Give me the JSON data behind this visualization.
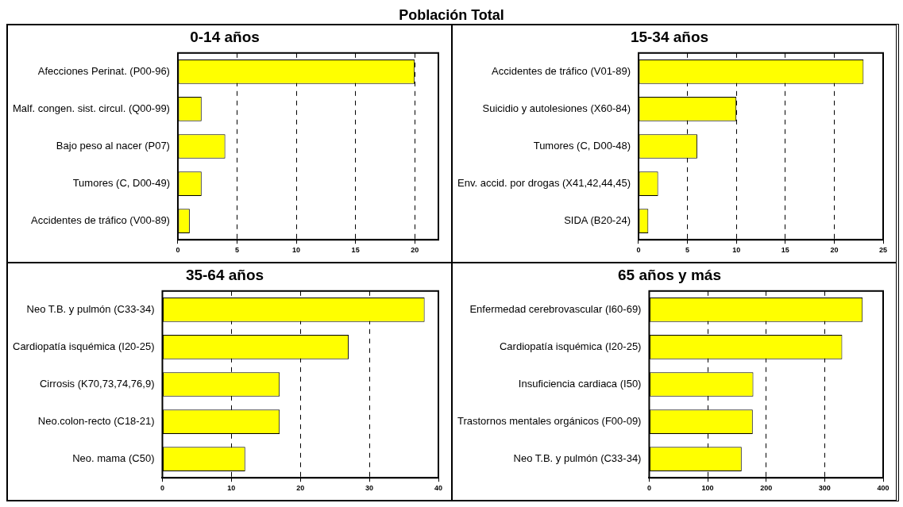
{
  "chart_data": [
    {
      "type": "other",
      "title": "Población Total"
    },
    {
      "type": "bar",
      "orientation": "horizontal",
      "title": "0-14 años",
      "categories": [
        "Afecciones Perinat. (P00-96)",
        "Malf. congen. sist. circul. (Q00-99)",
        "Bajo peso al nacer (P07)",
        "Tumores (C, D00-49)",
        "Accidentes de tráfico (V00-89)"
      ],
      "values": [
        20,
        2,
        4,
        2,
        1
      ],
      "color": "#ffff00",
      "xlim": [
        0,
        22
      ],
      "xticks": [
        0,
        5,
        10,
        15,
        20
      ],
      "grid": "x",
      "legend": false
    },
    {
      "type": "bar",
      "orientation": "horizontal",
      "title": "15-34 años",
      "categories": [
        "Accidentes de tráfico (V01-89)",
        "Suicidio y autolesiones (X60-84)",
        "Tumores (C, D00-48)",
        "Env. accid. por drogas (X41,42,44,45)",
        "SIDA (B20-24)"
      ],
      "values": [
        23,
        10,
        6,
        2,
        1
      ],
      "color": "#ffff00",
      "xlim": [
        0,
        25
      ],
      "xticks": [
        0,
        5,
        10,
        15,
        20,
        25
      ],
      "grid": "x",
      "legend": false
    },
    {
      "type": "bar",
      "orientation": "horizontal",
      "title": "35-64 años",
      "categories": [
        "Neo T.B. y pulmón (C33-34)",
        "Cardiopatía isquémica (I20-25)",
        "Cirrosis (K70,73,74,76,9)",
        "Neo.colon-recto (C18-21)",
        "Neo. mama (C50)"
      ],
      "values": [
        38,
        27,
        17,
        17,
        12
      ],
      "color": "#ffff00",
      "xlim": [
        0,
        40
      ],
      "xticks": [
        0,
        10,
        20,
        30,
        40
      ],
      "grid": "x",
      "legend": false
    },
    {
      "type": "bar",
      "orientation": "horizontal",
      "title": "65 años y más",
      "categories": [
        "Enfermedad cerebrovascular (I60-69)",
        "Cardiopatía isquémica (I20-25)",
        "Insuficiencia cardiaca (I50)",
        "Trastornos mentales orgánicos (F00-09)",
        "Neo T.B. y pulmón (C33-34)"
      ],
      "values": [
        365,
        330,
        178,
        177,
        158
      ],
      "color": "#ffff00",
      "xlim": [
        0,
        400
      ],
      "xticks": [
        0,
        100,
        200,
        300,
        400
      ],
      "grid": "x",
      "legend": false
    }
  ]
}
